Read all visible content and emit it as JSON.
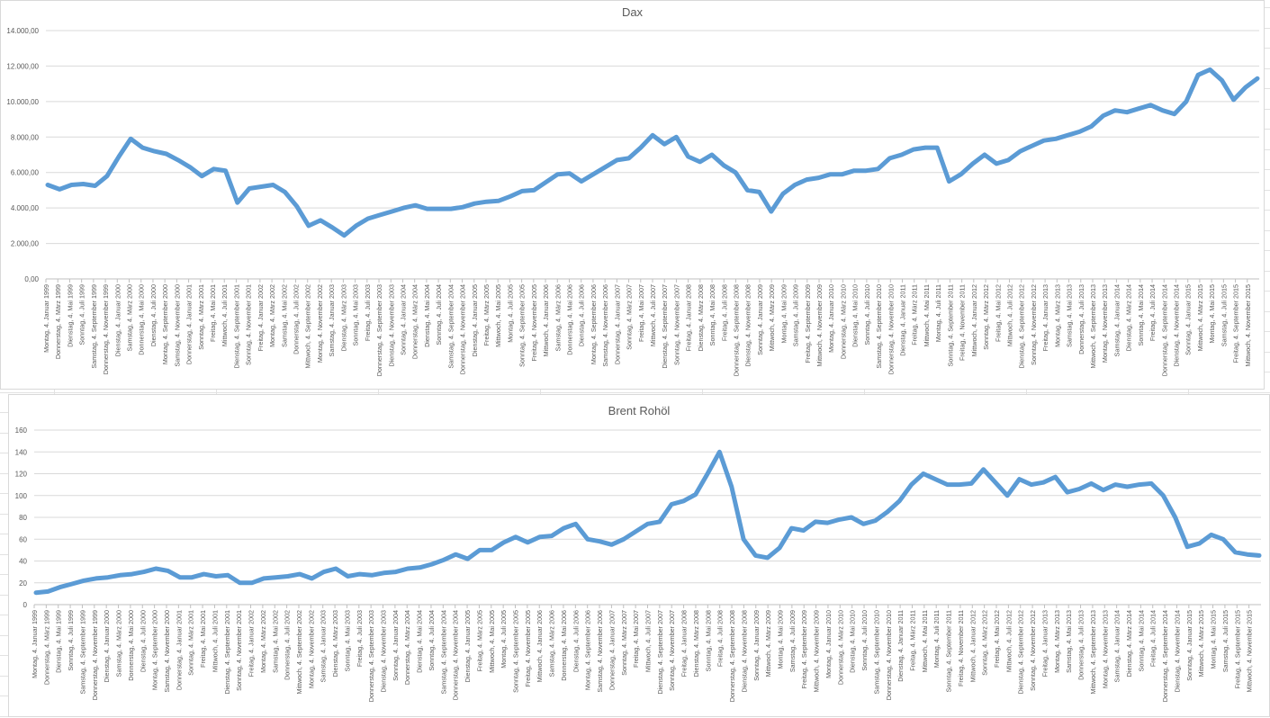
{
  "charts": {
    "dax": {
      "title": "Dax"
    },
    "brent": {
      "title": "Brent Rohöl"
    }
  },
  "colors": {
    "series": "#5b9bd5",
    "grid": "#d9d9d9",
    "text": "#595959"
  },
  "chart_data": [
    {
      "type": "line",
      "title": "Dax",
      "xlabel": "",
      "ylabel": "",
      "ylim": [
        0,
        14000
      ],
      "yticks": [
        "0,00",
        "2.000,00",
        "4.000,00",
        "6.000,00",
        "8.000,00",
        "10.000,00",
        "12.000,00",
        "14.000,00"
      ],
      "grid": true,
      "legend": "none",
      "x_tick_labels": [
        "Montag, 4. Januar 1999",
        "Donnerstag, 4. März 1999",
        "Dienstag, 4. Mai 1999",
        "Sonntag, 4. Juli 1999",
        "Samstag, 4. September 1999",
        "Donnerstag, 4. November 1999",
        "Dienstag, 4. Januar 2000",
        "Samstag, 4. März 2000",
        "Donnerstag, 4. Mai 2000",
        "Dienstag, 4. Juli 2000",
        "Montag, 4. September 2000",
        "Samstag, 4. November 2000",
        "Donnerstag, 4. Januar 2001",
        "Sonntag, 4. März 2001",
        "Freitag, 4. Mai 2001",
        "Mittwoch, 4. Juli 2001",
        "Dienstag, 4. September 2001",
        "Sonntag, 4. November 2001",
        "Freitag, 4. Januar 2002",
        "Montag, 4. März 2002",
        "Samstag, 4. Mai 2002",
        "Donnerstag, 4. Juli 2002",
        "Mittwoch, 4. September 2002",
        "Montag, 4. November 2002",
        "Samstag, 4. Januar 2003",
        "Dienstag, 4. März 2003",
        "Sonntag, 4. Mai 2003",
        "Freitag, 4. Juli 2003",
        "Donnerstag, 4. September 2003",
        "Dienstag, 4. November 2003",
        "Sonntag, 4. Januar 2004",
        "Donnerstag, 4. März 2004",
        "Dienstag, 4. Mai 2004",
        "Sonntag, 4. Juli 2004",
        "Samstag, 4. September 2004",
        "Donnerstag, 4. November 2004",
        "Dienstag, 4. Januar 2005",
        "Freitag, 4. März 2005",
        "Mittwoch, 4. Mai 2005",
        "Montag, 4. Juli 2005",
        "Sonntag, 4. September 2005",
        "Freitag, 4. November 2005",
        "Mittwoch, 4. Januar 2006",
        "Samstag, 4. März 2006",
        "Donnerstag, 4. Mai 2006",
        "Dienstag, 4. Juli 2006",
        "Montag, 4. September 2006",
        "Samstag, 4. November 2006",
        "Donnerstag, 4. Januar 2007",
        "Sonntag, 4. März 2007",
        "Freitag, 4. Mai 2007",
        "Mittwoch, 4. Juli 2007",
        "Dienstag, 4. September 2007",
        "Sonntag, 4. November 2007",
        "Freitag, 4. Januar 2008",
        "Dienstag, 4. März 2008",
        "Sonntag, 4. Mai 2008",
        "Freitag, 4. Juli 2008",
        "Donnerstag, 4. September 2008",
        "Dienstag, 4. November 2008",
        "Sonntag, 4. Januar 2009",
        "Mittwoch, 4. März 2009",
        "Montag, 4. Mai 2009",
        "Samstag, 4. Juli 2009",
        "Freitag, 4. September 2009",
        "Mittwoch, 4. November 2009",
        "Montag, 4. Januar 2010",
        "Donnerstag, 4. März 2010",
        "Dienstag, 4. Mai 2010",
        "Sonntag, 4. Juli 2010",
        "Samstag, 4. September 2010",
        "Donnerstag, 4. November 2010",
        "Dienstag, 4. Januar 2011",
        "Freitag, 4. März 2011",
        "Mittwoch, 4. Mai 2011",
        "Montag, 4. Juli 2011",
        "Sonntag, 4. September 2011",
        "Freitag, 4. November 2011",
        "Mittwoch, 4. Januar 2012",
        "Sonntag, 4. März 2012",
        "Freitag, 4. Mai 2012",
        "Mittwoch, 4. Juli 2012",
        "Dienstag, 4. September 2012",
        "Sonntag, 4. November 2012",
        "Freitag, 4. Januar 2013",
        "Montag, 4. März 2013",
        "Samstag, 4. Mai 2013",
        "Donnerstag, 4. Juli 2013",
        "Mittwoch, 4. September 2013",
        "Montag, 4. November 2013",
        "Samstag, 4. Januar 2014",
        "Dienstag, 4. März 2014",
        "Sonntag, 4. Mai 2014",
        "Freitag, 4. Juli 2014",
        "Donnerstag, 4. September 2014",
        "Dienstag, 4. November 2014",
        "Sonntag, 4. Januar 2015",
        "Mittwoch, 4. März 2015",
        "Montag, 4. Mai 2015",
        "Samstag, 4. Juli 2015",
        "Freitag, 4. September 2015",
        "Mittwoch, 4. November 2015"
      ],
      "x": [
        "1999-01",
        "1999-03",
        "1999-05",
        "1999-07",
        "1999-09",
        "1999-11",
        "2000-01",
        "2000-03",
        "2000-05",
        "2000-07",
        "2000-09",
        "2000-11",
        "2001-01",
        "2001-03",
        "2001-05",
        "2001-07",
        "2001-09",
        "2001-11",
        "2002-01",
        "2002-03",
        "2002-05",
        "2002-07",
        "2002-09",
        "2002-11",
        "2003-01",
        "2003-03",
        "2003-05",
        "2003-07",
        "2003-09",
        "2003-11",
        "2004-01",
        "2004-03",
        "2004-05",
        "2004-07",
        "2004-09",
        "2004-11",
        "2005-01",
        "2005-03",
        "2005-05",
        "2005-07",
        "2005-09",
        "2005-11",
        "2006-01",
        "2006-03",
        "2006-05",
        "2006-07",
        "2006-09",
        "2006-11",
        "2007-01",
        "2007-03",
        "2007-05",
        "2007-07",
        "2007-09",
        "2007-11",
        "2008-01",
        "2008-03",
        "2008-05",
        "2008-07",
        "2008-09",
        "2008-11",
        "2009-01",
        "2009-03",
        "2009-05",
        "2009-07",
        "2009-09",
        "2009-11",
        "2010-01",
        "2010-03",
        "2010-05",
        "2010-07",
        "2010-09",
        "2010-11",
        "2011-01",
        "2011-03",
        "2011-05",
        "2011-07",
        "2011-09",
        "2011-11",
        "2012-01",
        "2012-03",
        "2012-05",
        "2012-07",
        "2012-09",
        "2012-11",
        "2013-01",
        "2013-03",
        "2013-05",
        "2013-07",
        "2013-09",
        "2013-11",
        "2014-01",
        "2014-03",
        "2014-05",
        "2014-07",
        "2014-09",
        "2014-11",
        "2015-01",
        "2015-03",
        "2015-05",
        "2015-07",
        "2015-09",
        "2015-11",
        "2015-12"
      ],
      "values": [
        5300,
        5050,
        5300,
        5350,
        5250,
        5800,
        6900,
        7900,
        7400,
        7200,
        7050,
        6700,
        6300,
        5800,
        6200,
        6100,
        4300,
        5100,
        5200,
        5300,
        4900,
        4100,
        3000,
        3300,
        2900,
        2450,
        3000,
        3400,
        3600,
        3800,
        4000,
        4150,
        3950,
        3950,
        3950,
        4050,
        4250,
        4350,
        4400,
        4650,
        4950,
        5000,
        5450,
        5900,
        5950,
        5500,
        5900,
        6300,
        6700,
        6800,
        7400,
        8100,
        7600,
        8000,
        6900,
        6600,
        7000,
        6400,
        6000,
        5000,
        4900,
        3800,
        4800,
        5300,
        5600,
        5700,
        5900,
        5900,
        6100,
        6100,
        6200,
        6800,
        7000,
        7300,
        7400,
        7400,
        5500,
        5900,
        6500,
        7000,
        6500,
        6700,
        7200,
        7500,
        7800,
        7900,
        8100,
        8300,
        8600,
        9200,
        9500,
        9400,
        9600,
        9800,
        9500,
        9300,
        10000,
        11500,
        11800,
        11200,
        10100,
        10800,
        11300
      ],
      "series_name": "Dax"
    },
    {
      "type": "line",
      "title": "Brent Rohöl",
      "xlabel": "",
      "ylabel": "",
      "ylim": [
        0,
        160
      ],
      "yticks": [
        "0",
        "20",
        "40",
        "60",
        "80",
        "100",
        "120",
        "140",
        "160"
      ],
      "grid": true,
      "legend": "none",
      "x_tick_labels": [
        "Montag, 4. Januar 1999",
        "Donnerstag, 4. März 1999",
        "Dienstag, 4. Mai 1999",
        "Sonntag, 4. Juli 1999",
        "Samstag, 4. September 1999",
        "Donnerstag, 4. November 1999",
        "Dienstag, 4. Januar 2000",
        "Samstag, 4. März 2000",
        "Donnerstag, 4. Mai 2000",
        "Dienstag, 4. Juli 2000",
        "Montag, 4. September 2000",
        "Samstag, 4. November 2000",
        "Donnerstag, 4. Januar 2001",
        "Sonntag, 4. März 2001",
        "Freitag, 4. Mai 2001",
        "Mittwoch, 4. Juli 2001",
        "Dienstag, 4. September 2001",
        "Sonntag, 4. November 2001",
        "Freitag, 4. Januar 2002",
        "Montag, 4. März 2002",
        "Samstag, 4. Mai 2002",
        "Donnerstag, 4. Juli 2002",
        "Mittwoch, 4. September 2002",
        "Montag, 4. November 2002",
        "Samstag, 4. Januar 2003",
        "Dienstag, 4. März 2003",
        "Sonntag, 4. Mai 2003",
        "Freitag, 4. Juli 2003",
        "Donnerstag, 4. September 2003",
        "Dienstag, 4. November 2003",
        "Sonntag, 4. Januar 2004",
        "Donnerstag, 4. März 2004",
        "Dienstag, 4. Mai 2004",
        "Sonntag, 4. Juli 2004",
        "Samstag, 4. September 2004",
        "Donnerstag, 4. November 2004",
        "Dienstag, 4. Januar 2005",
        "Freitag, 4. März 2005",
        "Mittwoch, 4. Mai 2005",
        "Montag, 4. Juli 2005",
        "Sonntag, 4. September 2005",
        "Freitag, 4. November 2005",
        "Mittwoch, 4. Januar 2006",
        "Samstag, 4. März 2006",
        "Donnerstag, 4. Mai 2006",
        "Dienstag, 4. Juli 2006",
        "Montag, 4. September 2006",
        "Samstag, 4. November 2006",
        "Donnerstag, 4. Januar 2007",
        "Sonntag, 4. März 2007",
        "Freitag, 4. Mai 2007",
        "Mittwoch, 4. Juli 2007",
        "Dienstag, 4. September 2007",
        "Sonntag, 4. November 2007",
        "Freitag, 4. Januar 2008",
        "Dienstag, 4. März 2008",
        "Sonntag, 4. Mai 2008",
        "Freitag, 4. Juli 2008",
        "Donnerstag, 4. September 2008",
        "Dienstag, 4. November 2008",
        "Sonntag, 4. Januar 2009",
        "Mittwoch, 4. März 2009",
        "Montag, 4. Mai 2009",
        "Samstag, 4. Juli 2009",
        "Freitag, 4. September 2009",
        "Mittwoch, 4. November 2009",
        "Montag, 4. Januar 2010",
        "Donnerstag, 4. März 2010",
        "Dienstag, 4. Mai 2010",
        "Sonntag, 4. Juli 2010",
        "Samstag, 4. September 2010",
        "Donnerstag, 4. November 2010",
        "Dienstag, 4. Januar 2011",
        "Freitag, 4. März 2011",
        "Mittwoch, 4. Mai 2011",
        "Montag, 4. Juli 2011",
        "Sonntag, 4. September 2011",
        "Freitag, 4. November 2011",
        "Mittwoch, 4. Januar 2012",
        "Sonntag, 4. März 2012",
        "Freitag, 4. Mai 2012",
        "Mittwoch, 4. Juli 2012",
        "Dienstag, 4. September 2012",
        "Sonntag, 4. November 2012",
        "Freitag, 4. Januar 2013",
        "Montag, 4. März 2013",
        "Samstag, 4. Mai 2013",
        "Donnerstag, 4. Juli 2013",
        "Mittwoch, 4. September 2013",
        "Montag, 4. November 2013",
        "Samstag, 4. Januar 2014",
        "Dienstag, 4. März 2014",
        "Sonntag, 4. Mai 2014",
        "Freitag, 4. Juli 2014",
        "Donnerstag, 4. September 2014",
        "Dienstag, 4. November 2014",
        "Sonntag, 4. Januar 2015",
        "Mittwoch, 4. März 2015",
        "Montag, 4. Mai 2015",
        "Samstag, 4. Juli 2015",
        "Freitag, 4. September 2015",
        "Mittwoch, 4. November 2015"
      ],
      "x": [
        "1999-01",
        "1999-03",
        "1999-05",
        "1999-07",
        "1999-09",
        "1999-11",
        "2000-01",
        "2000-03",
        "2000-05",
        "2000-07",
        "2000-09",
        "2000-11",
        "2001-01",
        "2001-03",
        "2001-05",
        "2001-07",
        "2001-09",
        "2001-11",
        "2002-01",
        "2002-03",
        "2002-05",
        "2002-07",
        "2002-09",
        "2002-11",
        "2003-01",
        "2003-03",
        "2003-05",
        "2003-07",
        "2003-09",
        "2003-11",
        "2004-01",
        "2004-03",
        "2004-05",
        "2004-07",
        "2004-09",
        "2004-11",
        "2005-01",
        "2005-03",
        "2005-05",
        "2005-07",
        "2005-09",
        "2005-11",
        "2006-01",
        "2006-03",
        "2006-05",
        "2006-07",
        "2006-09",
        "2006-11",
        "2007-01",
        "2007-03",
        "2007-05",
        "2007-07",
        "2007-09",
        "2007-11",
        "2008-01",
        "2008-03",
        "2008-05",
        "2008-07",
        "2008-09",
        "2008-11",
        "2009-01",
        "2009-03",
        "2009-05",
        "2009-07",
        "2009-09",
        "2009-11",
        "2010-01",
        "2010-03",
        "2010-05",
        "2010-07",
        "2010-09",
        "2010-11",
        "2011-01",
        "2011-03",
        "2011-05",
        "2011-07",
        "2011-09",
        "2011-11",
        "2012-01",
        "2012-03",
        "2012-05",
        "2012-07",
        "2012-09",
        "2012-11",
        "2013-01",
        "2013-03",
        "2013-05",
        "2013-07",
        "2013-09",
        "2013-11",
        "2014-01",
        "2014-03",
        "2014-05",
        "2014-07",
        "2014-09",
        "2014-11",
        "2015-01",
        "2015-03",
        "2015-05",
        "2015-07",
        "2015-09",
        "2015-11",
        "2015-12"
      ],
      "values": [
        11,
        12,
        16,
        19,
        22,
        24,
        25,
        27,
        28,
        30,
        33,
        31,
        25,
        25,
        28,
        26,
        27,
        20,
        20,
        24,
        25,
        26,
        28,
        24,
        30,
        33,
        26,
        28,
        27,
        29,
        30,
        33,
        34,
        37,
        41,
        46,
        42,
        50,
        50,
        57,
        62,
        57,
        62,
        63,
        70,
        74,
        60,
        58,
        55,
        60,
        67,
        74,
        76,
        92,
        95,
        101,
        120,
        140,
        108,
        60,
        45,
        43,
        52,
        70,
        68,
        76,
        75,
        78,
        80,
        74,
        77,
        85,
        95,
        110,
        120,
        115,
        110,
        110,
        111,
        124,
        112,
        100,
        115,
        110,
        112,
        117,
        103,
        106,
        111,
        105,
        110,
        108,
        110,
        111,
        100,
        80,
        53,
        56,
        64,
        60,
        48,
        46,
        45
      ],
      "series_name": "Brent Rohöl"
    }
  ]
}
